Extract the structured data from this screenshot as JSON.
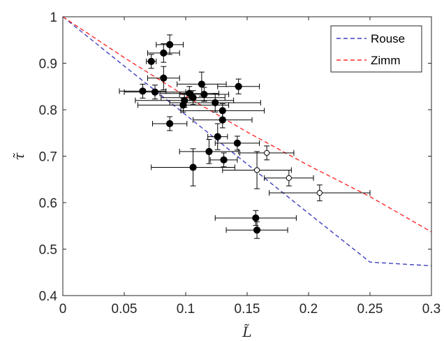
{
  "chart_data": {
    "type": "scatter",
    "title": "",
    "xlabel": "L̃",
    "ylabel": "τ̃",
    "xlim": [
      0,
      0.3
    ],
    "ylim": [
      0.4,
      1.0
    ],
    "x_ticks": [
      "0",
      "0.05",
      "0.1",
      "0.15",
      "0.2",
      "0.25",
      "0.3"
    ],
    "y_ticks": [
      "0.4",
      "0.5",
      "0.6",
      "0.7",
      "0.8",
      "0.9",
      "1"
    ],
    "x_tick_values": [
      0,
      0.05,
      0.1,
      0.15,
      0.2,
      0.25,
      0.3
    ],
    "y_tick_values": [
      0.4,
      0.5,
      0.6,
      0.7,
      0.8,
      0.9,
      1.0
    ],
    "grid": false,
    "legend_position": "top-right",
    "series": [
      {
        "name": "Rouse",
        "kind": "dashed-line",
        "color": "#3f3fbf",
        "x": [
          0,
          0.05,
          0.1,
          0.15,
          0.2,
          0.25,
          0.3
        ],
        "y": [
          1.0,
          0.894,
          0.789,
          0.683,
          0.577,
          0.472,
          0.464
        ]
      },
      {
        "name": "Zimm",
        "kind": "dashed-line",
        "color": "#ff2a2a",
        "x": [
          0,
          0.05,
          0.1,
          0.15,
          0.2,
          0.25,
          0.3
        ],
        "y": [
          1.0,
          0.912,
          0.829,
          0.752,
          0.68,
          0.613,
          0.537
        ]
      },
      {
        "kind": "filled-points",
        "color": "#000000",
        "points": [
          {
            "x": 0.087,
            "y": 0.94,
            "xerr": 0.011,
            "yerr": 0.021
          },
          {
            "x": 0.082,
            "y": 0.922,
            "xerr": 0.013,
            "yerr": 0.02
          },
          {
            "x": 0.072,
            "y": 0.904,
            "xerr": 0.004,
            "yerr": 0.015
          },
          {
            "x": 0.082,
            "y": 0.868,
            "xerr": 0.013,
            "yerr": 0.025
          },
          {
            "x": 0.065,
            "y": 0.84,
            "xerr": 0.019,
            "yerr": 0.015
          },
          {
            "x": 0.075,
            "y": 0.838,
            "xerr": 0.025,
            "yerr": 0.015
          },
          {
            "x": 0.113,
            "y": 0.855,
            "xerr": 0.02,
            "yerr": 0.026
          },
          {
            "x": 0.143,
            "y": 0.85,
            "xerr": 0.017,
            "yerr": 0.016
          },
          {
            "x": 0.103,
            "y": 0.835,
            "xerr": 0.024,
            "yerr": 0.015
          },
          {
            "x": 0.106,
            "y": 0.826,
            "xerr": 0.026,
            "yerr": 0.015
          },
          {
            "x": 0.115,
            "y": 0.833,
            "xerr": 0.02,
            "yerr": 0.015
          },
          {
            "x": 0.099,
            "y": 0.82,
            "xerr": 0.04,
            "yerr": 0.015
          },
          {
            "x": 0.098,
            "y": 0.81,
            "xerr": 0.037,
            "yerr": 0.015
          },
          {
            "x": 0.124,
            "y": 0.815,
            "xerr": 0.037,
            "yerr": 0.02
          },
          {
            "x": 0.13,
            "y": 0.798,
            "xerr": 0.034,
            "yerr": 0.015
          },
          {
            "x": 0.087,
            "y": 0.77,
            "xerr": 0.014,
            "yerr": 0.015
          },
          {
            "x": 0.13,
            "y": 0.778,
            "xerr": 0.024,
            "yerr": 0.017
          },
          {
            "x": 0.126,
            "y": 0.742,
            "xerr": 0.008,
            "yerr": 0.028
          },
          {
            "x": 0.142,
            "y": 0.728,
            "xerr": 0.018,
            "yerr": 0.015
          },
          {
            "x": 0.119,
            "y": 0.71,
            "xerr": 0.024,
            "yerr": 0.026
          },
          {
            "x": 0.131,
            "y": 0.692,
            "xerr": 0.011,
            "yerr": 0.015
          },
          {
            "x": 0.106,
            "y": 0.676,
            "xerr": 0.034,
            "yerr": 0.04
          },
          {
            "x": 0.157,
            "y": 0.567,
            "xerr": 0.033,
            "yerr": 0.016
          },
          {
            "x": 0.158,
            "y": 0.541,
            "xerr": 0.025,
            "yerr": 0.018
          }
        ]
      },
      {
        "kind": "open-points",
        "color": "#000000",
        "points": [
          {
            "x": 0.166,
            "y": 0.707,
            "xerr": 0.022,
            "yerr": 0.015
          },
          {
            "x": 0.158,
            "y": 0.67,
            "xerr": 0.028,
            "yerr": 0.04
          },
          {
            "x": 0.184,
            "y": 0.653,
            "xerr": 0.02,
            "yerr": 0.017
          },
          {
            "x": 0.209,
            "y": 0.621,
            "xerr": 0.041,
            "yerr": 0.017
          }
        ]
      }
    ]
  }
}
